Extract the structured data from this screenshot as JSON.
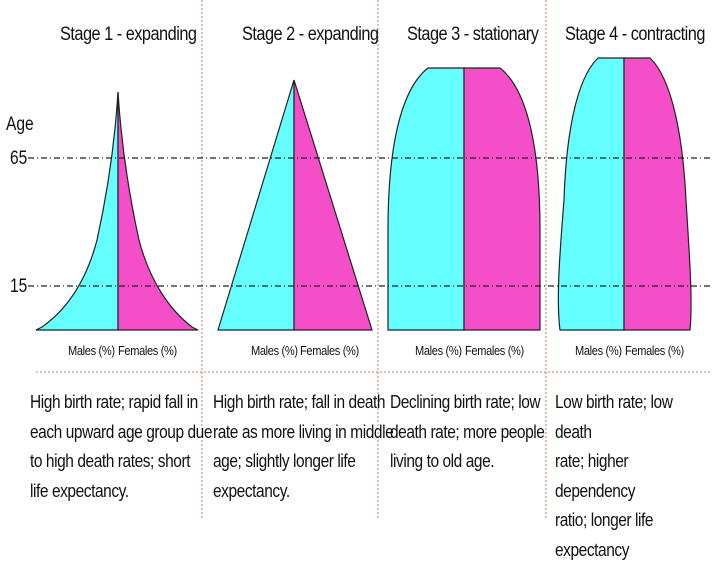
{
  "y_axis": {
    "label": "Age",
    "ticks": [
      "65",
      "15"
    ]
  },
  "colors": {
    "male": "#66ffff",
    "female": "#f44fc9",
    "outline": "#222222",
    "separator": "#c08070"
  },
  "stages": [
    {
      "title": "Stage 1 - expanding",
      "male_label": "Males (%)",
      "female_label": "Females (%)",
      "description": [
        "High birth rate; rapid fall in",
        "each upward age group due",
        "to high death rates; short",
        "life expectancy."
      ]
    },
    {
      "title": "Stage 2 - expanding",
      "male_label": "Males (%)",
      "female_label": "Females (%)",
      "description": [
        "High birth rate; fall in death",
        "rate as more living in middle",
        "age; slightly longer life",
        "expectancy."
      ]
    },
    {
      "title": "Stage 3 - stationary",
      "male_label": "Males (%)",
      "female_label": "Females (%)",
      "description": [
        "Declining birth rate; low",
        "death rate; more people",
        "living to old age."
      ]
    },
    {
      "title": "Stage 4 - contracting",
      "male_label": "Males (%)",
      "female_label": "Females (%)",
      "description": [
        "Low birth rate; low death",
        "rate; higher dependency",
        "ratio; longer life expectancy"
      ]
    }
  ]
}
